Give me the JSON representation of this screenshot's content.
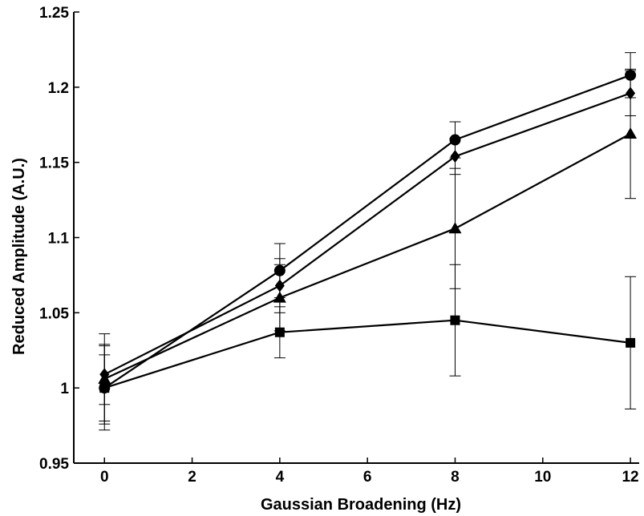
{
  "chart_data": {
    "type": "line",
    "title": "",
    "xlabel": "Gaussian Broadening (Hz)",
    "ylabel": "Reduced Amplitude (A.U.)",
    "xlim": [
      -0.7,
      12.2
    ],
    "ylim": [
      0.95,
      1.25
    ],
    "grid": false,
    "legend": "none",
    "x_ticks": [
      "0",
      "2",
      "4",
      "6",
      "8",
      "10",
      "12"
    ],
    "y_ticks": [
      "0.95",
      "1",
      "1.05",
      "1.1",
      "1.15",
      "1.2",
      "1.25"
    ],
    "x": [
      0,
      4,
      8,
      12
    ],
    "series": [
      {
        "marker": "circle",
        "values": [
          1.0,
          1.078,
          1.165,
          1.208
        ],
        "err": [
          0.028,
          0.018,
          0.012,
          0.015
        ]
      },
      {
        "marker": "diamond",
        "values": [
          1.009,
          1.068,
          1.154,
          1.196
        ],
        "err": [
          0.02,
          0.018,
          0.012,
          0.015
        ]
      },
      {
        "marker": "triangle",
        "values": [
          1.006,
          1.06,
          1.106,
          1.169
        ],
        "err": [
          0.03,
          0.022,
          0.04,
          0.043
        ]
      },
      {
        "marker": "square",
        "values": [
          1.0,
          1.037,
          1.045,
          1.03
        ],
        "err": [
          0.022,
          0.017,
          0.037,
          0.044
        ]
      }
    ],
    "colors": {
      "line": "#000000",
      "marker": "#000000"
    }
  }
}
